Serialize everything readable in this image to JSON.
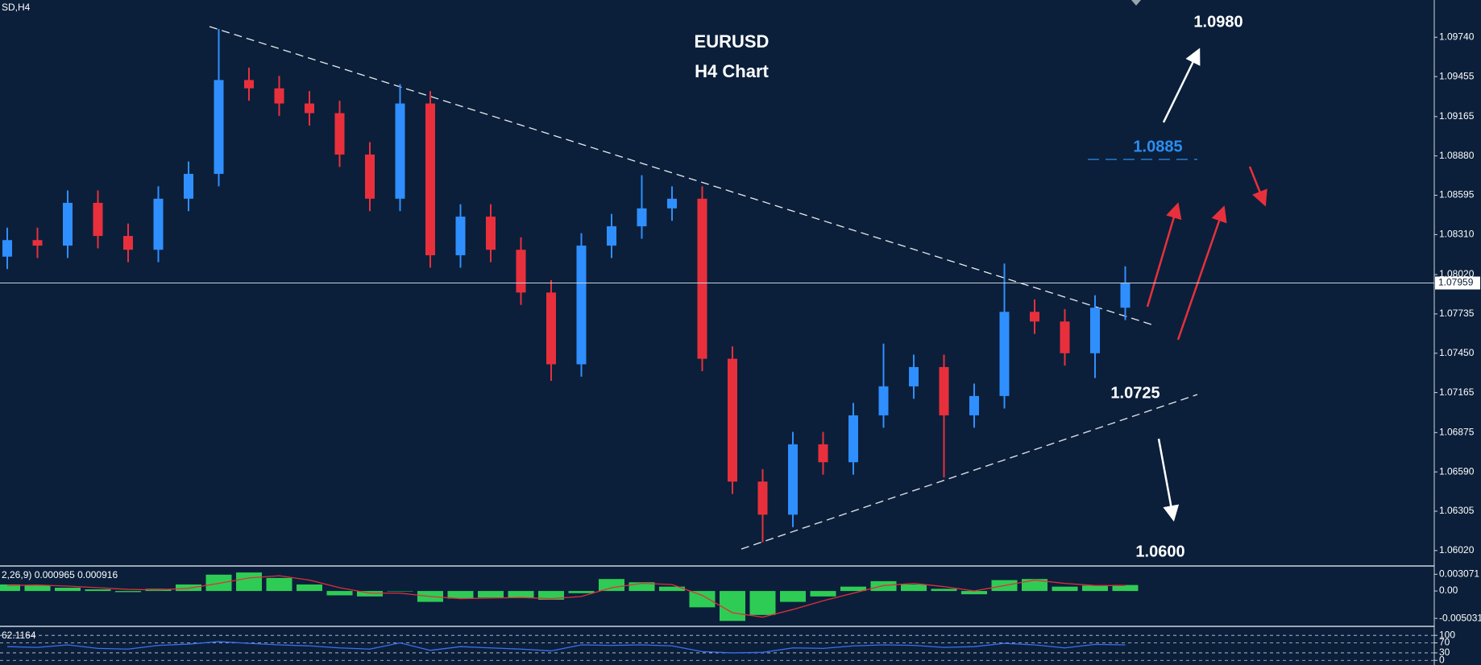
{
  "chart_data": [
    {
      "type": "candlestick",
      "symbol": "SD,H4",
      "title": "EURUSD",
      "subtitle": "H4 Chart",
      "up_color": "#2f8fff",
      "down_color": "#e8303c",
      "open": [
        1.0815,
        1.0827,
        1.0823,
        1.0854,
        1.083,
        1.082,
        1.0857,
        1.0875,
        1.0943,
        1.0937,
        1.0926,
        1.0919,
        1.0889,
        1.0857,
        1.0926,
        1.0816,
        1.0844,
        1.082,
        1.0789,
        1.0737,
        1.0823,
        1.0837,
        1.085,
        1.0857,
        1.0741,
        1.0652,
        1.0628,
        1.0679,
        1.0666,
        1.07,
        1.0721,
        1.0735,
        1.07,
        1.0714,
        1.0775,
        1.0768,
        1.0745,
        1.0778
      ],
      "high": [
        1.0836,
        1.0836,
        1.0863,
        1.0863,
        1.0839,
        1.0866,
        1.0884,
        1.098,
        1.0952,
        1.0946,
        1.0935,
        1.0928,
        1.0898,
        1.094,
        1.0935,
        1.0853,
        1.0853,
        1.0829,
        1.0798,
        1.0832,
        1.0846,
        1.0874,
        1.0866,
        1.0866,
        1.075,
        1.0661,
        1.0688,
        1.0688,
        1.0709,
        1.0752,
        1.0744,
        1.0744,
        1.0723,
        1.081,
        1.0784,
        1.0777,
        1.0787,
        1.0808
      ],
      "low": [
        1.0806,
        1.0814,
        1.0814,
        1.0821,
        1.0811,
        1.0811,
        1.0848,
        1.0866,
        1.0928,
        1.0917,
        1.091,
        1.088,
        1.0848,
        1.0848,
        1.0807,
        1.0807,
        1.0811,
        1.078,
        1.0725,
        1.0728,
        1.0814,
        1.0828,
        1.0841,
        1.0732,
        1.0643,
        1.0608,
        1.0619,
        1.0657,
        1.0657,
        1.0691,
        1.0712,
        1.0655,
        1.0691,
        1.0705,
        1.0759,
        1.0736,
        1.0727,
        1.0769
      ],
      "close": [
        1.0827,
        1.0823,
        1.0854,
        1.083,
        1.082,
        1.0857,
        1.0875,
        1.0943,
        1.0937,
        1.0926,
        1.0919,
        1.0889,
        1.0857,
        1.0926,
        1.0816,
        1.0844,
        1.082,
        1.0789,
        1.0737,
        1.0823,
        1.0837,
        1.085,
        1.0857,
        1.0741,
        1.0652,
        1.0628,
        1.0679,
        1.0666,
        1.07,
        1.0721,
        1.0735,
        1.07,
        1.0714,
        1.0775,
        1.0768,
        1.0745,
        1.0778,
        1.0796
      ],
      "ylim": [
        1.0592,
        1.1001
      ],
      "yticks": [
        {
          "value": 1.0602,
          "label": "1.06020"
        },
        {
          "value": 1.06305,
          "label": "1.06305"
        },
        {
          "value": 1.0659,
          "label": "1.06590"
        },
        {
          "value": 1.06875,
          "label": "1.06875"
        },
        {
          "value": 1.07165,
          "label": "1.07165"
        },
        {
          "value": 1.0745,
          "label": "1.07450"
        },
        {
          "value": 1.07735,
          "label": "1.07735"
        },
        {
          "value": 1.0802,
          "label": "1.08020"
        },
        {
          "value": 1.0831,
          "label": "1.08310"
        },
        {
          "value": 1.08595,
          "label": "1.08595"
        },
        {
          "value": 1.0888,
          "label": "1.08880"
        },
        {
          "value": 1.09165,
          "label": "1.09165"
        },
        {
          "value": 1.09455,
          "label": "1.09455"
        },
        {
          "value": 1.0974,
          "label": "1.09740"
        }
      ],
      "current_price": 1.07959,
      "levels": [
        "1.0980",
        "1.0885",
        "1.0725",
        "1.0600"
      ]
    },
    {
      "type": "macd",
      "label": "2,26,9) 0.000965 0.000916",
      "color": "#2ecc55",
      "signal_color": "#e0303c",
      "values": [
        0.0012,
        0.001,
        0.0006,
        0.0003,
        -0.0002,
        0.0004,
        0.0012,
        0.003,
        0.0034,
        0.0024,
        0.0012,
        -0.0008,
        -0.001,
        0.0,
        -0.002,
        -0.0014,
        -0.0012,
        -0.0012,
        -0.0016,
        -0.0004,
        0.0022,
        0.0016,
        0.0008,
        -0.003,
        -0.0055,
        -0.0044,
        -0.002,
        -0.001,
        0.0008,
        0.0018,
        0.0012,
        0.0004,
        -0.0006,
        0.002,
        0.0022,
        0.0008,
        0.001,
        0.0011
      ],
      "signal": [
        0.001,
        0.0011,
        0.0009,
        0.0006,
        0.0003,
        0.0002,
        0.0005,
        0.0014,
        0.0024,
        0.0028,
        0.002,
        0.0006,
        -0.0004,
        -0.0004,
        -0.001,
        -0.0014,
        -0.0013,
        -0.0012,
        -0.0014,
        -0.001,
        0.0006,
        0.0014,
        0.0012,
        -0.0008,
        -0.004,
        -0.0048,
        -0.0034,
        -0.0018,
        -0.0004,
        0.001,
        0.0014,
        0.0008,
        0.0,
        0.001,
        0.002,
        0.0014,
        0.001,
        0.001
      ],
      "ylim": [
        -0.0062,
        0.0043
      ],
      "yticks": [
        0.003071,
        {
          "value": 0,
          "label": "0.00"
        },
        -0.005031
      ]
    },
    {
      "type": "line",
      "label": "62.1164",
      "color": "#3b6ff0",
      "values": [
        55,
        52,
        62,
        48,
        45,
        60,
        65,
        75,
        68,
        62,
        58,
        50,
        45,
        70,
        40,
        55,
        50,
        45,
        38,
        62,
        60,
        62,
        58,
        35,
        30,
        32,
        50,
        48,
        58,
        62,
        60,
        52,
        55,
        68,
        62,
        50,
        64,
        62
      ],
      "ylim": [
        -18.5,
        129.6
      ],
      "yticks": [
        100,
        70,
        30,
        0
      ],
      "grid": true
    }
  ]
}
